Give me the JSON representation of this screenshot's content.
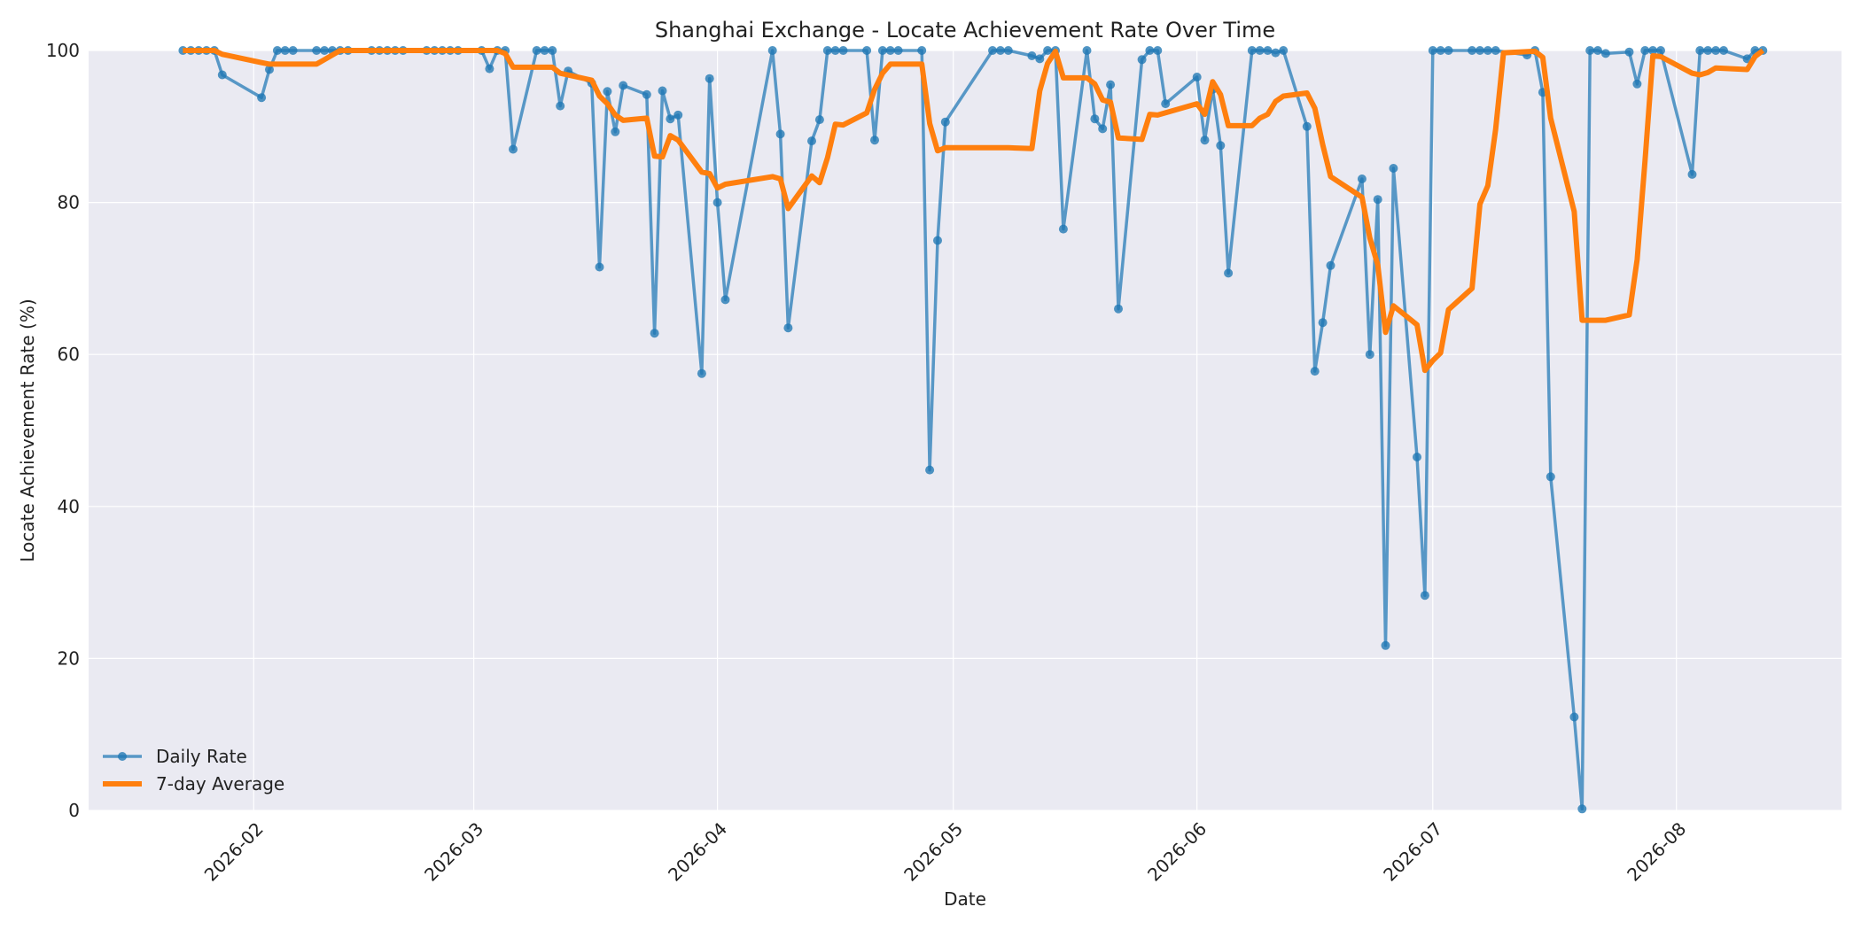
{
  "chart_data": {
    "type": "line",
    "title": "Shanghai Exchange - Locate Achievement Rate Over Time",
    "xlabel": "Date",
    "ylabel": "Locate Achievement Rate (%)",
    "x_range": [
      "2026-01-11",
      "2026-08-22"
    ],
    "ylim": [
      0,
      100
    ],
    "x_ticks": [
      "2026-02",
      "2026-03",
      "2026-04",
      "2026-05",
      "2026-06",
      "2026-07",
      "2026-08"
    ],
    "y_ticks": [
      0,
      20,
      40,
      60,
      80,
      100
    ],
    "grid": true,
    "legend_position": "lower-left",
    "colors": {
      "daily": "#1f77b4",
      "average": "#ff7f0e",
      "plot_bg": "#eaeaf2",
      "grid": "#ffffff"
    },
    "series": [
      {
        "name": "Daily Rate",
        "style": "line-with-markers",
        "points": [
          [
            "2026-01-23",
            100
          ],
          [
            "2026-01-24",
            100
          ],
          [
            "2026-01-25",
            100
          ],
          [
            "2026-01-26",
            100
          ],
          [
            "2026-01-27",
            100
          ],
          [
            "2026-01-28",
            96.8
          ],
          [
            "2026-02-02",
            93.8
          ],
          [
            "2026-02-03",
            97.5
          ],
          [
            "2026-02-04",
            100
          ],
          [
            "2026-02-05",
            100
          ],
          [
            "2026-02-06",
            100
          ],
          [
            "2026-02-09",
            100
          ],
          [
            "2026-02-10",
            100
          ],
          [
            "2026-02-11",
            100
          ],
          [
            "2026-02-12",
            100
          ],
          [
            "2026-02-13",
            100
          ],
          [
            "2026-02-16",
            100
          ],
          [
            "2026-02-17",
            100
          ],
          [
            "2026-02-18",
            100
          ],
          [
            "2026-02-19",
            100
          ],
          [
            "2026-02-20",
            100
          ],
          [
            "2026-02-23",
            100
          ],
          [
            "2026-02-24",
            100
          ],
          [
            "2026-02-25",
            100
          ],
          [
            "2026-02-26",
            100
          ],
          [
            "2026-02-27",
            100
          ],
          [
            "2026-03-02",
            100
          ],
          [
            "2026-03-03",
            97.6
          ],
          [
            "2026-03-04",
            100
          ],
          [
            "2026-03-05",
            100
          ],
          [
            "2026-03-06",
            87
          ],
          [
            "2026-03-09",
            100
          ],
          [
            "2026-03-10",
            100
          ],
          [
            "2026-03-11",
            100
          ],
          [
            "2026-03-12",
            92.7
          ],
          [
            "2026-03-13",
            97.3
          ],
          [
            "2026-03-16",
            95.7
          ],
          [
            "2026-03-17",
            71.5
          ],
          [
            "2026-03-18",
            94.6
          ],
          [
            "2026-03-19",
            89.3
          ],
          [
            "2026-03-20",
            95.4
          ],
          [
            "2026-03-23",
            94.2
          ],
          [
            "2026-03-24",
            62.8
          ],
          [
            "2026-03-25",
            94.7
          ],
          [
            "2026-03-26",
            91
          ],
          [
            "2026-03-27",
            91.5
          ],
          [
            "2026-03-30",
            57.5
          ],
          [
            "2026-03-31",
            96.3
          ],
          [
            "2026-04-01",
            80
          ],
          [
            "2026-04-02",
            67.2
          ],
          [
            "2026-04-08",
            100
          ],
          [
            "2026-04-09",
            89
          ],
          [
            "2026-04-10",
            63.5
          ],
          [
            "2026-04-13",
            88.1
          ],
          [
            "2026-04-14",
            90.9
          ],
          [
            "2026-04-15",
            100
          ],
          [
            "2026-04-16",
            100
          ],
          [
            "2026-04-17",
            100
          ],
          [
            "2026-04-20",
            100
          ],
          [
            "2026-04-21",
            88.2
          ],
          [
            "2026-04-22",
            100
          ],
          [
            "2026-04-23",
            100
          ],
          [
            "2026-04-24",
            100
          ],
          [
            "2026-04-27",
            100
          ],
          [
            "2026-04-28",
            44.8
          ],
          [
            "2026-04-29",
            75
          ],
          [
            "2026-04-30",
            90.6
          ],
          [
            "2026-05-06",
            100
          ],
          [
            "2026-05-07",
            100
          ],
          [
            "2026-05-08",
            100
          ],
          [
            "2026-05-11",
            99.3
          ],
          [
            "2026-05-12",
            98.9
          ],
          [
            "2026-05-13",
            100
          ],
          [
            "2026-05-14",
            100
          ],
          [
            "2026-05-15",
            76.5
          ],
          [
            "2026-05-18",
            100
          ],
          [
            "2026-05-19",
            91
          ],
          [
            "2026-05-20",
            89.7
          ],
          [
            "2026-05-21",
            95.5
          ],
          [
            "2026-05-22",
            66
          ],
          [
            "2026-05-25",
            98.8
          ],
          [
            "2026-05-26",
            100
          ],
          [
            "2026-05-27",
            100
          ],
          [
            "2026-05-28",
            93
          ],
          [
            "2026-06-01",
            96.5
          ],
          [
            "2026-06-02",
            88.2
          ],
          [
            "2026-06-03",
            94.9
          ],
          [
            "2026-06-04",
            87.5
          ],
          [
            "2026-06-05",
            70.7
          ],
          [
            "2026-06-08",
            100
          ],
          [
            "2026-06-09",
            100
          ],
          [
            "2026-06-10",
            100
          ],
          [
            "2026-06-11",
            99.7
          ],
          [
            "2026-06-12",
            100
          ],
          [
            "2026-06-15",
            90
          ],
          [
            "2026-06-16",
            57.8
          ],
          [
            "2026-06-17",
            64.2
          ],
          [
            "2026-06-18",
            71.7
          ],
          [
            "2026-06-22",
            83.1
          ],
          [
            "2026-06-23",
            60
          ],
          [
            "2026-06-24",
            80.4
          ],
          [
            "2026-06-25",
            21.7
          ],
          [
            "2026-06-26",
            84.5
          ],
          [
            "2026-06-29",
            46.5
          ],
          [
            "2026-06-30",
            28.3
          ],
          [
            "2026-07-01",
            100
          ],
          [
            "2026-07-02",
            100
          ],
          [
            "2026-07-03",
            100
          ],
          [
            "2026-07-06",
            100
          ],
          [
            "2026-07-07",
            100
          ],
          [
            "2026-07-08",
            100
          ],
          [
            "2026-07-09",
            100
          ],
          [
            "2026-07-13",
            99.4
          ],
          [
            "2026-07-14",
            100
          ],
          [
            "2026-07-15",
            94.5
          ],
          [
            "2026-07-16",
            43.9
          ],
          [
            "2026-07-19",
            12.3
          ],
          [
            "2026-07-20",
            0.2
          ],
          [
            "2026-07-21",
            100
          ],
          [
            "2026-07-22",
            100
          ],
          [
            "2026-07-23",
            99.6
          ],
          [
            "2026-07-26",
            99.8
          ],
          [
            "2026-07-27",
            95.6
          ],
          [
            "2026-07-28",
            100
          ],
          [
            "2026-07-29",
            100
          ],
          [
            "2026-07-30",
            100
          ],
          [
            "2026-08-03",
            83.7
          ],
          [
            "2026-08-04",
            100
          ],
          [
            "2026-08-05",
            100
          ],
          [
            "2026-08-06",
            100
          ],
          [
            "2026-08-07",
            100
          ],
          [
            "2026-08-10",
            98.9
          ],
          [
            "2026-08-11",
            100
          ],
          [
            "2026-08-12",
            100
          ]
        ]
      },
      {
        "name": "7-day Average",
        "style": "thick-line",
        "points": [
          [
            "2026-01-23",
            100
          ],
          [
            "2026-01-27",
            100
          ],
          [
            "2026-01-28",
            99.5
          ],
          [
            "2026-02-02",
            98.4
          ],
          [
            "2026-02-03",
            98.2
          ],
          [
            "2026-02-09",
            98.2
          ],
          [
            "2026-02-10",
            98.8
          ],
          [
            "2026-02-12",
            100
          ],
          [
            "2026-02-13",
            100
          ],
          [
            "2026-03-02",
            100
          ],
          [
            "2026-03-04",
            100
          ],
          [
            "2026-03-05",
            99.6
          ],
          [
            "2026-03-06",
            97.8
          ],
          [
            "2026-03-11",
            97.8
          ],
          [
            "2026-03-12",
            97
          ],
          [
            "2026-03-16",
            96.1
          ],
          [
            "2026-03-17",
            94
          ],
          [
            "2026-03-18",
            93
          ],
          [
            "2026-03-19",
            91.5
          ],
          [
            "2026-03-20",
            90.8
          ],
          [
            "2026-03-23",
            91.1
          ],
          [
            "2026-03-24",
            86.1
          ],
          [
            "2026-03-25",
            86
          ],
          [
            "2026-03-26",
            88.8
          ],
          [
            "2026-03-27",
            88.2
          ],
          [
            "2026-03-30",
            84
          ],
          [
            "2026-03-31",
            83.8
          ],
          [
            "2026-04-01",
            81.9
          ],
          [
            "2026-04-02",
            82.4
          ],
          [
            "2026-04-08",
            83.4
          ],
          [
            "2026-04-09",
            83.1
          ],
          [
            "2026-04-10",
            79.2
          ],
          [
            "2026-04-13",
            83.5
          ],
          [
            "2026-04-14",
            82.6
          ],
          [
            "2026-04-15",
            85.9
          ],
          [
            "2026-04-16",
            90.3
          ],
          [
            "2026-04-17",
            90.2
          ],
          [
            "2026-04-20",
            91.8
          ],
          [
            "2026-04-21",
            94.9
          ],
          [
            "2026-04-22",
            97
          ],
          [
            "2026-04-23",
            98.2
          ],
          [
            "2026-04-27",
            98.2
          ],
          [
            "2026-04-28",
            90.4
          ],
          [
            "2026-04-29",
            86.8
          ],
          [
            "2026-04-30",
            87.2
          ],
          [
            "2026-05-08",
            87.2
          ],
          [
            "2026-05-11",
            87.1
          ],
          [
            "2026-05-12",
            94.7
          ],
          [
            "2026-05-13",
            98.3
          ],
          [
            "2026-05-14",
            99.9
          ],
          [
            "2026-05-15",
            96.4
          ],
          [
            "2026-05-18",
            96.4
          ],
          [
            "2026-05-19",
            95.6
          ],
          [
            "2026-05-20",
            93.5
          ],
          [
            "2026-05-21",
            93.2
          ],
          [
            "2026-05-22",
            88.5
          ],
          [
            "2026-05-25",
            88.3
          ],
          [
            "2026-05-26",
            91.6
          ],
          [
            "2026-05-27",
            91.5
          ],
          [
            "2026-06-01",
            93
          ],
          [
            "2026-06-02",
            91.6
          ],
          [
            "2026-06-03",
            95.9
          ],
          [
            "2026-06-04",
            94.2
          ],
          [
            "2026-06-05",
            90.1
          ],
          [
            "2026-06-08",
            90.1
          ],
          [
            "2026-06-09",
            91.1
          ],
          [
            "2026-06-10",
            91.6
          ],
          [
            "2026-06-11",
            93.3
          ],
          [
            "2026-06-12",
            94
          ],
          [
            "2026-06-15",
            94.4
          ],
          [
            "2026-06-16",
            92.4
          ],
          [
            "2026-06-17",
            87.6
          ],
          [
            "2026-06-18",
            83.4
          ],
          [
            "2026-06-22",
            80.7
          ],
          [
            "2026-06-23",
            75.3
          ],
          [
            "2026-06-24",
            71.8
          ],
          [
            "2026-06-25",
            62.9
          ],
          [
            "2026-06-26",
            66.4
          ],
          [
            "2026-06-29",
            63.9
          ],
          [
            "2026-06-30",
            57.9
          ],
          [
            "2026-07-01",
            59.2
          ],
          [
            "2026-07-02",
            60.2
          ],
          [
            "2026-07-03",
            65.9
          ],
          [
            "2026-07-06",
            68.7
          ],
          [
            "2026-07-07",
            79.8
          ],
          [
            "2026-07-08",
            82.2
          ],
          [
            "2026-07-09",
            89.6
          ],
          [
            "2026-07-10",
            99.7
          ],
          [
            "2026-07-14",
            99.9
          ],
          [
            "2026-07-15",
            99.1
          ],
          [
            "2026-07-16",
            91.1
          ],
          [
            "2026-07-19",
            78.8
          ],
          [
            "2026-07-20",
            64.5
          ],
          [
            "2026-07-23",
            64.5
          ],
          [
            "2026-07-26",
            65.2
          ],
          [
            "2026-07-27",
            72.5
          ],
          [
            "2026-07-28",
            85.5
          ],
          [
            "2026-07-29",
            99.3
          ],
          [
            "2026-07-30",
            99.2
          ],
          [
            "2026-08-03",
            97
          ],
          [
            "2026-08-04",
            96.8
          ],
          [
            "2026-08-05",
            97.1
          ],
          [
            "2026-08-06",
            97.7
          ],
          [
            "2026-08-10",
            97.5
          ],
          [
            "2026-08-11",
            99.2
          ],
          [
            "2026-08-12",
            100
          ]
        ]
      }
    ]
  }
}
